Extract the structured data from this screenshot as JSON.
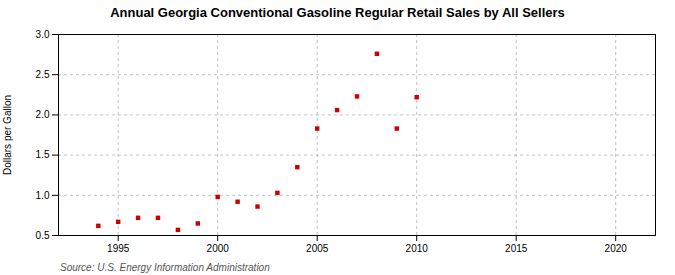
{
  "chart_data": {
    "type": "scatter",
    "title": "Annual Georgia Conventional Gasoline Regular Retail Sales by All Sellers",
    "ylabel": "Dollars per Gallon",
    "source": "Source: U.S. Energy Information Administration",
    "x": [
      1994,
      1995,
      1996,
      1997,
      1998,
      1999,
      2000,
      2001,
      2002,
      2003,
      2004,
      2005,
      2006,
      2007,
      2008,
      2009,
      2010
    ],
    "values": [
      0.62,
      0.67,
      0.72,
      0.72,
      0.57,
      0.65,
      0.98,
      0.92,
      0.86,
      1.03,
      1.35,
      1.83,
      2.06,
      2.23,
      2.76,
      1.83,
      2.22
    ],
    "color": "#cc0000",
    "marker": "square",
    "xlim": [
      1992,
      2022
    ],
    "ylim": [
      0.5,
      3.0
    ],
    "xticks": [
      1995,
      2000,
      2005,
      2010,
      2015,
      2020
    ],
    "yticks": [
      0.5,
      {
        "value": 1.0,
        "label": "1.0"
      },
      1.5,
      {
        "value": 2.0,
        "label": "2.0"
      },
      2.5,
      {
        "value": 3.0,
        "label": "3.0"
      }
    ],
    "grid": true
  }
}
